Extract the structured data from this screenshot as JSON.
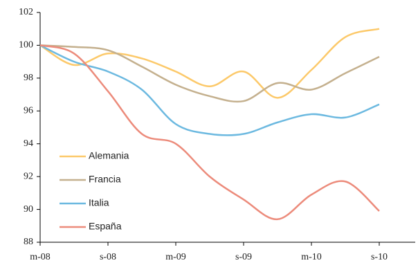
{
  "chart_data": {
    "type": "line",
    "categories": [
      "m-08",
      null,
      "s-08",
      null,
      "m-09",
      null,
      "s-09",
      null,
      "m-10",
      null,
      "s-10"
    ],
    "series": [
      {
        "name": "Alemania",
        "color": "#fcc96a",
        "values": [
          100,
          98.8,
          99.5,
          99.2,
          98.4,
          97.5,
          98.4,
          96.8,
          98.5,
          100.5,
          101.0
        ]
      },
      {
        "name": "Francia",
        "color": "#c4b08e",
        "values": [
          100,
          99.9,
          99.7,
          98.7,
          97.6,
          96.9,
          96.6,
          97.7,
          97.3,
          98.3,
          99.3
        ]
      },
      {
        "name": "Italia",
        "color": "#6cb9e0",
        "values": [
          100,
          99.0,
          98.4,
          97.3,
          95.2,
          94.6,
          94.6,
          95.3,
          95.8,
          95.6,
          96.4
        ]
      },
      {
        "name": "España",
        "color": "#ec8b7b",
        "values": [
          100,
          99.5,
          97.2,
          94.6,
          94.0,
          92.0,
          90.6,
          89.4,
          90.9,
          91.7,
          89.9
        ]
      }
    ],
    "ylim": [
      88,
      102
    ],
    "yticks": [
      88,
      90,
      92,
      94,
      96,
      98,
      100,
      102
    ],
    "legend": "lower-left"
  }
}
